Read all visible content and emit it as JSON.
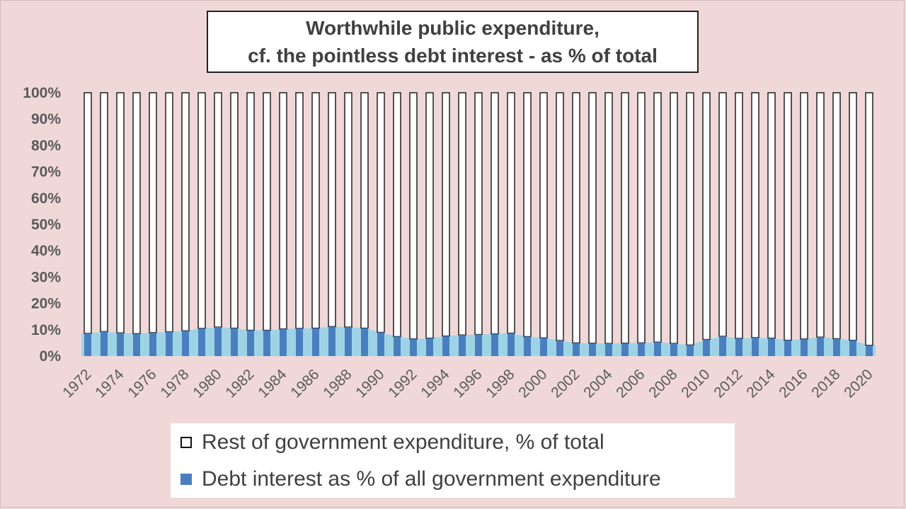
{
  "title_line1": "Worthwhile public expenditure,",
  "title_line2": "cf. the pointless debt interest - as % of total",
  "chart_data": {
    "type": "bar",
    "stacked": true,
    "percent_stacked": true,
    "title": "Worthwhile public expenditure, cf. the pointless debt interest - as % of total",
    "x": [
      1972,
      1973,
      1974,
      1975,
      1976,
      1977,
      1978,
      1979,
      1980,
      1981,
      1982,
      1983,
      1984,
      1985,
      1986,
      1987,
      1988,
      1989,
      1990,
      1991,
      1992,
      1993,
      1994,
      1995,
      1996,
      1997,
      1998,
      1999,
      2000,
      2001,
      2002,
      2003,
      2004,
      2005,
      2006,
      2007,
      2008,
      2009,
      2010,
      2011,
      2012,
      2013,
      2014,
      2015,
      2016,
      2017,
      2018,
      2019,
      2020
    ],
    "x_tick_labels": [
      "1972",
      "1974",
      "1976",
      "1978",
      "1980",
      "1982",
      "1984",
      "1986",
      "1988",
      "1990",
      "1992",
      "1994",
      "1996",
      "1998",
      "2000",
      "2002",
      "2004",
      "2006",
      "2008",
      "2010",
      "2012",
      "2014",
      "2016",
      "2018",
      "2020"
    ],
    "y_tick_labels": [
      "0%",
      "10%",
      "20%",
      "30%",
      "40%",
      "50%",
      "60%",
      "70%",
      "80%",
      "90%",
      "100%"
    ],
    "ylim": [
      0,
      100
    ],
    "grid": false,
    "legend_position": "bottom",
    "series": [
      {
        "name": "Debt interest as % of all government expenditure",
        "color": "#4a7fbf",
        "values": [
          8.6,
          9.3,
          8.8,
          8.5,
          8.9,
          9.2,
          9.6,
          10.5,
          11.0,
          10.6,
          9.8,
          9.8,
          10.3,
          10.5,
          10.6,
          11.2,
          11.0,
          10.6,
          9.0,
          7.4,
          6.5,
          6.8,
          7.6,
          8.0,
          8.2,
          8.4,
          8.7,
          7.4,
          6.9,
          5.9,
          5.0,
          4.9,
          4.8,
          4.9,
          5.0,
          5.3,
          4.8,
          4.2,
          6.3,
          7.5,
          6.7,
          7.0,
          6.8,
          6.0,
          6.5,
          7.2,
          6.6,
          6.0,
          4.1
        ]
      },
      {
        "name": "Rest of government expenditure, % of total",
        "color": "#ffffff",
        "values": [
          91.4,
          90.7,
          91.2,
          91.5,
          91.1,
          90.8,
          90.4,
          89.5,
          89.0,
          89.4,
          90.2,
          90.2,
          89.7,
          89.5,
          89.4,
          88.8,
          89.0,
          89.4,
          91.0,
          92.6,
          93.5,
          93.2,
          92.4,
          92.0,
          91.8,
          91.6,
          91.3,
          92.6,
          93.1,
          94.1,
          95.0,
          95.1,
          95.2,
          95.1,
          95.0,
          94.7,
          95.2,
          95.8,
          93.7,
          92.5,
          93.3,
          93.0,
          93.2,
          94.0,
          93.5,
          92.8,
          93.4,
          94.0,
          95.9
        ]
      }
    ]
  },
  "legend": {
    "rest_label": "Rest of government expenditure, % of total",
    "debt_label": "Debt interest as % of all government expenditure"
  },
  "colors": {
    "background": "#f0d8d9",
    "debt_bar": "#4a7fbf",
    "area_shade": "#9ed3e6",
    "rest_bar_fill": "#ffffff",
    "rest_bar_stroke": "#111111"
  }
}
